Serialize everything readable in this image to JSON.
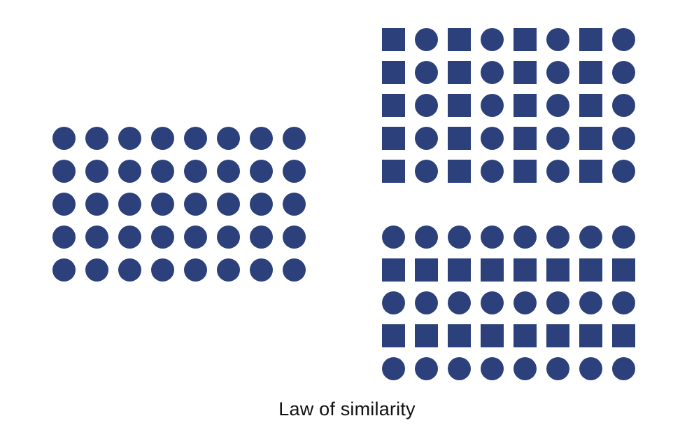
{
  "caption": "Law of similarity",
  "colors": {
    "shape_fill": "#2c407b",
    "caption_text": "#111111",
    "background": "#ffffff"
  },
  "grids": [
    {
      "name": "uniform-circles-grid",
      "rows": [
        [
          "circle",
          "circle",
          "circle",
          "circle",
          "circle",
          "circle",
          "circle",
          "circle"
        ],
        [
          "circle",
          "circle",
          "circle",
          "circle",
          "circle",
          "circle",
          "circle",
          "circle"
        ],
        [
          "circle",
          "circle",
          "circle",
          "circle",
          "circle",
          "circle",
          "circle",
          "circle"
        ],
        [
          "circle",
          "circle",
          "circle",
          "circle",
          "circle",
          "circle",
          "circle",
          "circle"
        ],
        [
          "circle",
          "circle",
          "circle",
          "circle",
          "circle",
          "circle",
          "circle",
          "circle"
        ]
      ]
    },
    {
      "name": "alternating-columns-grid",
      "rows": [
        [
          "square",
          "circle",
          "square",
          "circle",
          "square",
          "circle",
          "square",
          "circle"
        ],
        [
          "square",
          "circle",
          "square",
          "circle",
          "square",
          "circle",
          "square",
          "circle"
        ],
        [
          "square",
          "circle",
          "square",
          "circle",
          "square",
          "circle",
          "square",
          "circle"
        ],
        [
          "square",
          "circle",
          "square",
          "circle",
          "square",
          "circle",
          "square",
          "circle"
        ],
        [
          "square",
          "circle",
          "square",
          "circle",
          "square",
          "circle",
          "square",
          "circle"
        ]
      ]
    },
    {
      "name": "alternating-rows-grid",
      "rows": [
        [
          "circle",
          "circle",
          "circle",
          "circle",
          "circle",
          "circle",
          "circle",
          "circle"
        ],
        [
          "square",
          "square",
          "square",
          "square",
          "square",
          "square",
          "square",
          "square"
        ],
        [
          "circle",
          "circle",
          "circle",
          "circle",
          "circle",
          "circle",
          "circle",
          "circle"
        ],
        [
          "square",
          "square",
          "square",
          "square",
          "square",
          "square",
          "square",
          "square"
        ],
        [
          "circle",
          "circle",
          "circle",
          "circle",
          "circle",
          "circle",
          "circle",
          "circle"
        ]
      ]
    }
  ]
}
